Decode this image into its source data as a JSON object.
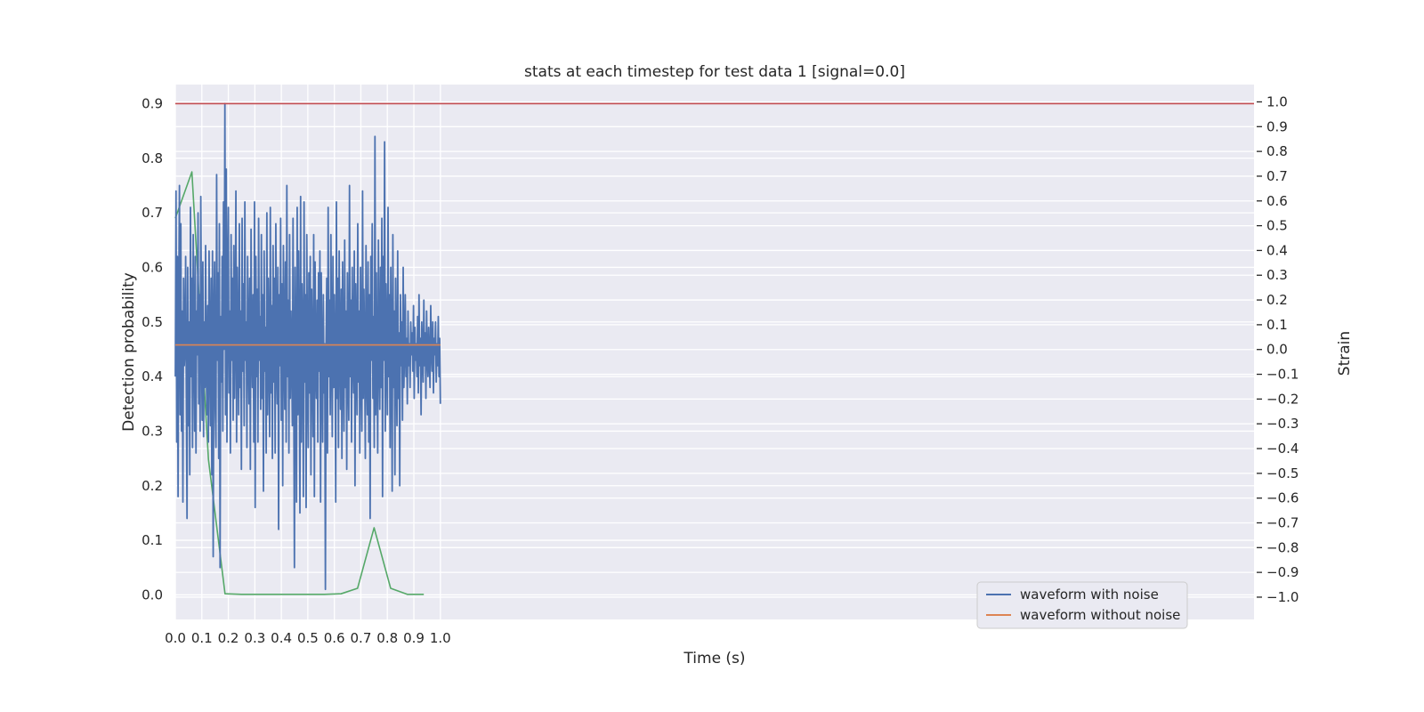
{
  "chart_data": {
    "type": "line",
    "title": "stats at each timestep for test data 1 [signal=0.0]",
    "xlabel": "Time (s)",
    "ylabel_left": "Detection probability",
    "ylabel_right": "Strain",
    "xlim": [
      0.0,
      4.07
    ],
    "ylim_left": [
      -0.045,
      0.935
    ],
    "ylim_right": [
      -1.09,
      1.07
    ],
    "x_ticks": [
      "0.0",
      "0.1",
      "0.2",
      "0.3",
      "0.4",
      "0.5",
      "0.6",
      "0.7",
      "0.8",
      "0.9",
      "1.0"
    ],
    "x_tick_values": [
      0.0,
      0.1,
      0.2,
      0.3,
      0.4,
      0.5,
      0.6,
      0.7,
      0.8,
      0.9,
      1.0
    ],
    "y_left_ticks": [
      "0.0",
      "0.1",
      "0.2",
      "0.3",
      "0.4",
      "0.5",
      "0.6",
      "0.7",
      "0.8",
      "0.9"
    ],
    "y_left_tick_values": [
      0.0,
      0.1,
      0.2,
      0.3,
      0.4,
      0.5,
      0.6,
      0.7,
      0.8,
      0.9
    ],
    "y_right_ticks": [
      "1.0",
      "0.9",
      "0.8",
      "0.7",
      "0.6",
      "0.5",
      "0.4",
      "0.3",
      "0.2",
      "0.1",
      "0.0",
      "−0.1",
      "−0.2",
      "−0.3",
      "−0.4",
      "−0.5",
      "−0.6",
      "−0.7",
      "−0.8",
      "−0.9",
      "−1.0"
    ],
    "y_right_tick_values": [
      1.0,
      0.9,
      0.8,
      0.7,
      0.6,
      0.5,
      0.4,
      0.3,
      0.2,
      0.1,
      0.0,
      -0.1,
      -0.2,
      -0.3,
      -0.4,
      -0.5,
      -0.6,
      -0.7,
      -0.8,
      -0.9,
      -1.0
    ],
    "grid": true,
    "legend_position": "lower-right",
    "series": [
      {
        "name": "waveform with noise",
        "axis": "left",
        "color": "#4c72b0",
        "x_start": 0.0,
        "x_end": 1.0,
        "sample_count": 400,
        "values": [
          0.4,
          0.74,
          0.28,
          0.62,
          0.18,
          0.55,
          0.75,
          0.33,
          0.68,
          0.3,
          0.52,
          0.17,
          0.58,
          0.42,
          0.45,
          0.62,
          0.36,
          0.14,
          0.6,
          0.31,
          0.5,
          0.22,
          0.71,
          0.4,
          0.58,
          0.27,
          0.66,
          0.48,
          0.3,
          0.62,
          0.26,
          0.52,
          0.44,
          0.7,
          0.35,
          0.55,
          0.3,
          0.73,
          0.47,
          0.32,
          0.61,
          0.29,
          0.5,
          0.38,
          0.64,
          0.41,
          0.33,
          0.53,
          0.28,
          0.63,
          0.45,
          0.31,
          0.58,
          0.22,
          0.63,
          0.07,
          0.5,
          0.61,
          0.34,
          0.27,
          0.77,
          0.43,
          0.59,
          0.25,
          0.68,
          0.05,
          0.51,
          0.39,
          0.62,
          0.3,
          0.72,
          0.45,
          0.9,
          0.33,
          0.78,
          0.28,
          0.57,
          0.71,
          0.37,
          0.52,
          0.26,
          0.66,
          0.43,
          0.58,
          0.32,
          0.64,
          0.36,
          0.49,
          0.74,
          0.28,
          0.6,
          0.45,
          0.33,
          0.68,
          0.38,
          0.52,
          0.23,
          0.69,
          0.41,
          0.57,
          0.31,
          0.72,
          0.43,
          0.5,
          0.27,
          0.62,
          0.46,
          0.35,
          0.58,
          0.23,
          0.67,
          0.46,
          0.38,
          0.55,
          0.28,
          0.72,
          0.16,
          0.62,
          0.4,
          0.56,
          0.28,
          0.69,
          0.43,
          0.51,
          0.34,
          0.66,
          0.36,
          0.55,
          0.19,
          0.63,
          0.41,
          0.49,
          0.26,
          0.7,
          0.33,
          0.58,
          0.46,
          0.29,
          0.71,
          0.37,
          0.53,
          0.25,
          0.64,
          0.39,
          0.58,
          0.26,
          0.68,
          0.43,
          0.35,
          0.6,
          0.12,
          0.55,
          0.42,
          0.69,
          0.32,
          0.57,
          0.2,
          0.64,
          0.47,
          0.34,
          0.61,
          0.28,
          0.75,
          0.4,
          0.54,
          0.26,
          0.66,
          0.36,
          0.52,
          0.44,
          0.31,
          0.69,
          0.38,
          0.05,
          0.6,
          0.45,
          0.17,
          0.71,
          0.33,
          0.63,
          0.44,
          0.15,
          0.73,
          0.28,
          0.57,
          0.48,
          0.18,
          0.72,
          0.39,
          0.55,
          0.16,
          0.66,
          0.42,
          0.27,
          0.59,
          0.37,
          0.62,
          0.22,
          0.56,
          0.44,
          0.29,
          0.66,
          0.18,
          0.61,
          0.43,
          0.36,
          0.54,
          0.28,
          0.59,
          0.41,
          0.63,
          0.17,
          0.59,
          0.42,
          0.28,
          0.55,
          0.37,
          0.46,
          0.01,
          0.46,
          0.58,
          0.26,
          0.71,
          0.4,
          0.54,
          0.33,
          0.66,
          0.45,
          0.29,
          0.62,
          0.38,
          0.55,
          0.43,
          0.17,
          0.72,
          0.36,
          0.58,
          0.27,
          0.63,
          0.46,
          0.34,
          0.56,
          0.25,
          0.61,
          0.42,
          0.3,
          0.65,
          0.38,
          0.52,
          0.23,
          0.59,
          0.41,
          0.32,
          0.75,
          0.4,
          0.54,
          0.28,
          0.6,
          0.44,
          0.37,
          0.63,
          0.2,
          0.57,
          0.46,
          0.33,
          0.68,
          0.39,
          0.52,
          0.26,
          0.6,
          0.42,
          0.3,
          0.74,
          0.36,
          0.56,
          0.44,
          0.25,
          0.64,
          0.41,
          0.33,
          0.61,
          0.28,
          0.55,
          0.14,
          0.62,
          0.43,
          0.68,
          0.36,
          0.51,
          0.27,
          0.84,
          0.33,
          0.59,
          0.41,
          0.26,
          0.65,
          0.45,
          0.34,
          0.6,
          0.38,
          0.69,
          0.18,
          0.62,
          0.43,
          0.83,
          0.3,
          0.57,
          0.44,
          0.33,
          0.71,
          0.4,
          0.55,
          0.27,
          0.6,
          0.46,
          0.19,
          0.66,
          0.38,
          0.52,
          0.22,
          0.58,
          0.43,
          0.31,
          0.63,
          0.36,
          0.48,
          0.2,
          0.55,
          0.42,
          0.5,
          0.32,
          0.6,
          0.38,
          0.45,
          0.55,
          0.4,
          0.47,
          0.35,
          0.52,
          0.42,
          0.46,
          0.38,
          0.5,
          0.44,
          0.48,
          0.41,
          0.53,
          0.36,
          0.49,
          0.43,
          0.46,
          0.4,
          0.51,
          0.37,
          0.55,
          0.42,
          0.47,
          0.33,
          0.5,
          0.45,
          0.39,
          0.54,
          0.42,
          0.48,
          0.36,
          0.52,
          0.44,
          0.4,
          0.49,
          0.43,
          0.38,
          0.53,
          0.45,
          0.41,
          0.5,
          0.37,
          0.47,
          0.44,
          0.5,
          0.39,
          0.46,
          0.42,
          0.51,
          0.4,
          0.47,
          0.35
        ]
      },
      {
        "name": "waveform without noise",
        "axis": "left",
        "color": "#dd8452",
        "x": [
          0.0,
          1.0
        ],
        "values": [
          0.458,
          0.458
        ]
      },
      {
        "name": "",
        "axis": "left",
        "color": "#55a868",
        "x": [
          0.0,
          0.0625,
          0.125,
          0.1875,
          0.25,
          0.3125,
          0.375,
          0.4375,
          0.5,
          0.5625,
          0.625,
          0.6875,
          0.75,
          0.8125,
          0.875,
          0.9375
        ],
        "values": [
          0.69,
          0.775,
          0.248,
          0.002,
          0.001,
          0.001,
          0.001,
          0.001,
          0.001,
          0.001,
          0.002,
          0.012,
          0.123,
          0.012,
          0.001,
          0.001
        ]
      },
      {
        "name": "",
        "axis": "left",
        "color": "#c44e52",
        "x": [
          0.0,
          4.07
        ],
        "values": [
          0.9,
          0.9
        ]
      }
    ]
  }
}
